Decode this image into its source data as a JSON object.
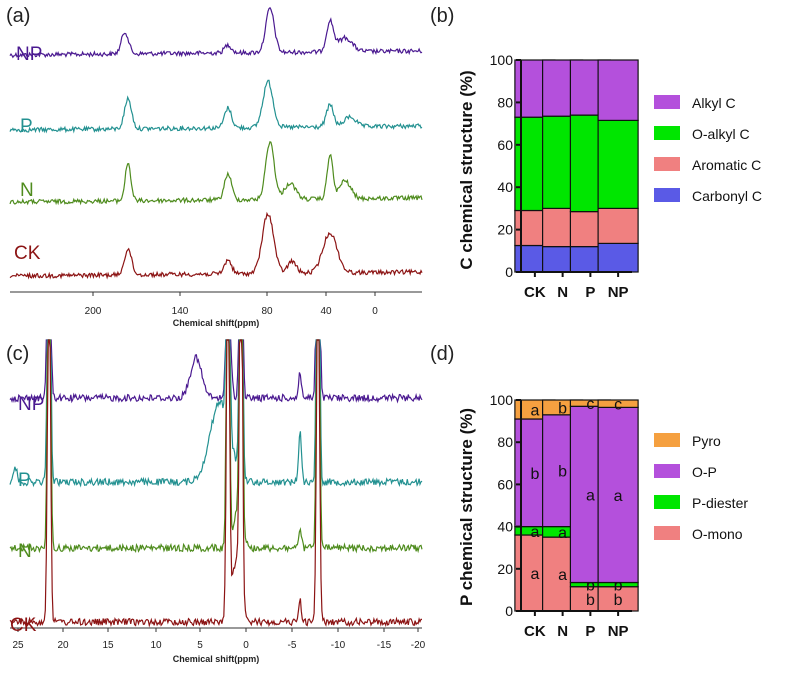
{
  "panels": {
    "a": {
      "label": "(a)",
      "xlabel": "Chemical shift(ppm)",
      "xticks": [
        "200",
        "140",
        "80",
        "40",
        "0"
      ],
      "traces": [
        {
          "label": "NP",
          "color": "#4b1a91"
        },
        {
          "label": "P",
          "color": "#239191"
        },
        {
          "label": "N",
          "color": "#4f8c1e"
        },
        {
          "label": "CK",
          "color": "#8c1414"
        }
      ]
    },
    "b": {
      "label": "(b)"
    },
    "c": {
      "label": "(c)",
      "xlabel": "Chemical shift(ppm)",
      "xticks": [
        "25",
        "20",
        "15",
        "10",
        "5",
        "0",
        "-5",
        "-10",
        "-15",
        "-20"
      ],
      "traces": [
        {
          "label": "NP",
          "color": "#4b1a91"
        },
        {
          "label": "P",
          "color": "#239191"
        },
        {
          "label": "N",
          "color": "#4f8c1e"
        },
        {
          "label": "CK",
          "color": "#8c1414"
        }
      ]
    },
    "d": {
      "label": "(d)"
    }
  },
  "chart_data": [
    {
      "panel": "b",
      "type": "bar",
      "stacked": true,
      "categories": [
        "CK",
        "N",
        "P",
        "NP"
      ],
      "ylabel": "C chemical structure (%)",
      "ylim": [
        0,
        100
      ],
      "yticks": [
        "0",
        "20",
        "40",
        "60",
        "80",
        "100"
      ],
      "legend_position": "right",
      "series": [
        {
          "name": "Carbonyl C",
          "color": "#5a5ae6",
          "values": [
            12.5,
            12,
            12,
            13.5
          ]
        },
        {
          "name": "Aromatic C",
          "color": "#f08080",
          "values": [
            16.5,
            18,
            16.5,
            16.5
          ]
        },
        {
          "name": "O-alkyl C",
          "color": "#00e600",
          "values": [
            44,
            43.5,
            45.5,
            41.5
          ]
        },
        {
          "name": "Alkyl C",
          "color": "#b450dc",
          "values": [
            27,
            26.5,
            26,
            28.5
          ]
        }
      ]
    },
    {
      "panel": "d",
      "type": "bar",
      "stacked": true,
      "categories": [
        "CK",
        "N",
        "P",
        "NP"
      ],
      "ylabel": "P chemical structure (%)",
      "ylim": [
        0,
        100
      ],
      "yticks": [
        "0",
        "20",
        "40",
        "60",
        "80",
        "100"
      ],
      "legend_position": "right",
      "series": [
        {
          "name": "O-mono",
          "color": "#f08080",
          "values": [
            36,
            35,
            11.5,
            11.5
          ],
          "letters": [
            "a",
            "a",
            "b",
            "b"
          ]
        },
        {
          "name": "P-diester",
          "color": "#00e600",
          "values": [
            4,
            5,
            2,
            2
          ],
          "letters": [
            "a",
            "a",
            "b",
            "b"
          ]
        },
        {
          "name": "O-P",
          "color": "#b450dc",
          "values": [
            51,
            53,
            83.5,
            83
          ],
          "letters": [
            "b",
            "b",
            "a",
            "a"
          ]
        },
        {
          "name": "Pyro",
          "color": "#f5a040",
          "values": [
            9,
            7,
            3,
            3.5
          ],
          "letters": [
            "a",
            "b",
            "c",
            "c"
          ]
        }
      ]
    }
  ]
}
